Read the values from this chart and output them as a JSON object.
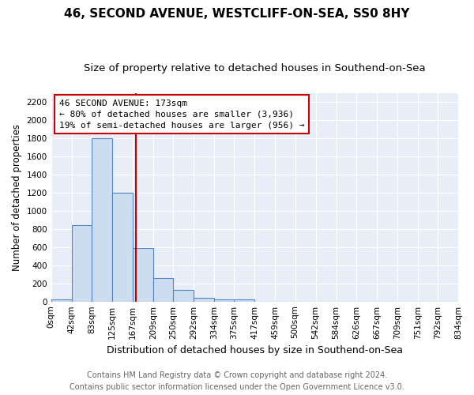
{
  "title": "46, SECOND AVENUE, WESTCLIFF-ON-SEA, SS0 8HY",
  "subtitle": "Size of property relative to detached houses in Southend-on-Sea",
  "xlabel": "Distribution of detached houses by size in Southend-on-Sea",
  "ylabel": "Number of detached properties",
  "bin_edges": [
    0,
    42,
    83,
    125,
    167,
    209,
    250,
    292,
    334,
    375,
    417,
    459,
    500,
    542,
    584,
    626,
    667,
    709,
    751,
    792,
    834
  ],
  "bin_labels": [
    "0sqm",
    "42sqm",
    "83sqm",
    "125sqm",
    "167sqm",
    "209sqm",
    "250sqm",
    "292sqm",
    "334sqm",
    "375sqm",
    "417sqm",
    "459sqm",
    "500sqm",
    "542sqm",
    "584sqm",
    "626sqm",
    "667sqm",
    "709sqm",
    "751sqm",
    "792sqm",
    "834sqm"
  ],
  "counts": [
    20,
    840,
    1800,
    1200,
    590,
    255,
    125,
    40,
    20,
    20,
    0,
    0,
    0,
    0,
    0,
    0,
    0,
    0,
    0,
    0
  ],
  "bar_color": "#ccddf0",
  "bar_edge_color": "#5585c5",
  "bar_linewidth": 0.8,
  "property_value": 173,
  "vline_color": "#cc0000",
  "vline_linewidth": 1.5,
  "annotation_line1": "46 SECOND AVENUE: 173sqm",
  "annotation_line2": "← 80% of detached houses are smaller (3,936)",
  "annotation_line3": "19% of semi-detached houses are larger (956) →",
  "annotation_fontsize": 8.0,
  "ylim": [
    0,
    2300
  ],
  "yticks": [
    0,
    200,
    400,
    600,
    800,
    1000,
    1200,
    1400,
    1600,
    1800,
    2000,
    2200
  ],
  "plot_bg_color": "#e8eef8",
  "fig_bg_color": "#ffffff",
  "grid_color": "#ffffff",
  "title_fontsize": 11,
  "subtitle_fontsize": 9.5,
  "xlabel_fontsize": 9,
  "ylabel_fontsize": 8.5,
  "tick_fontsize": 7.5,
  "footer_line1": "Contains HM Land Registry data © Crown copyright and database right 2024.",
  "footer_line2": "Contains public sector information licensed under the Open Government Licence v3.0.",
  "footer_fontsize": 7.0
}
